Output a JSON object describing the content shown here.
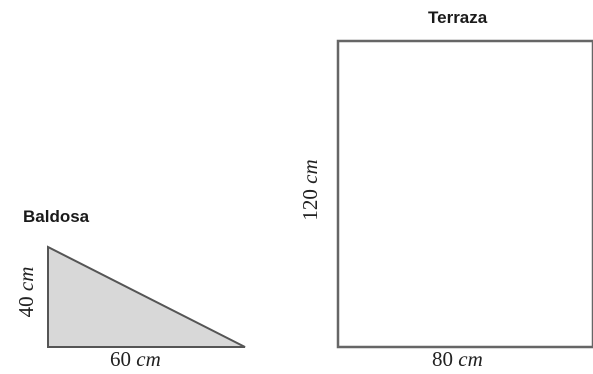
{
  "tile": {
    "title": "Baldosa",
    "height_value": "40",
    "height_unit": "cm",
    "width_value": "60",
    "width_unit": "cm",
    "fill_color": "#d8d8d8",
    "stroke_color": "#555555"
  },
  "terrace": {
    "title": "Terraza",
    "height_value": "120",
    "height_unit": "cm",
    "width_value": "80",
    "width_unit": "cm",
    "fill_color": "#ffffff",
    "stroke_color": "#666666"
  }
}
